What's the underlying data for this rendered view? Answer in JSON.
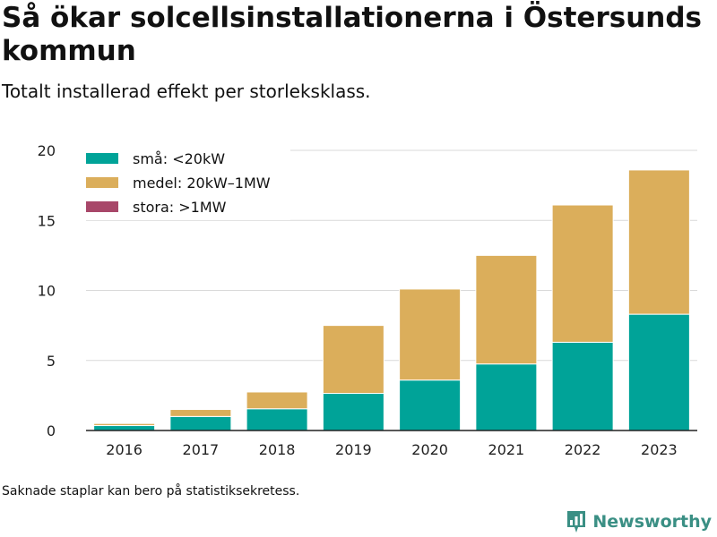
{
  "title": "Så ökar solcellsinstallationerna i Östersunds kommun",
  "subtitle": "Totalt installerad effekt per storleksklass.",
  "footnote": "Saknade staplar kan bero på statistiksekretess.",
  "brand": "Newsworthy",
  "chart_data": {
    "type": "bar",
    "stacked": true,
    "title": "",
    "xlabel": "",
    "ylabel": "",
    "categories": [
      "2016",
      "2017",
      "2018",
      "2019",
      "2020",
      "2021",
      "2022",
      "2023"
    ],
    "ylim": [
      0,
      20
    ],
    "yticks": [
      "0",
      "5",
      "10",
      "15",
      "20"
    ],
    "grid": true,
    "legend_position": "top-left",
    "series": [
      {
        "name": "små: <20kW",
        "color": "#00a398",
        "values": [
          0.35,
          1.0,
          1.55,
          2.65,
          3.6,
          4.75,
          6.3,
          8.3
        ]
      },
      {
        "name": "medel: 20kW–1MW",
        "color": "#dbae5b",
        "values": [
          0.15,
          0.5,
          1.2,
          4.85,
          6.5,
          7.75,
          9.8,
          10.3
        ]
      },
      {
        "name": "stora: >1MW",
        "color": "#a84769",
        "values": [
          0,
          0,
          0,
          0,
          0,
          0,
          0,
          0
        ]
      }
    ]
  }
}
